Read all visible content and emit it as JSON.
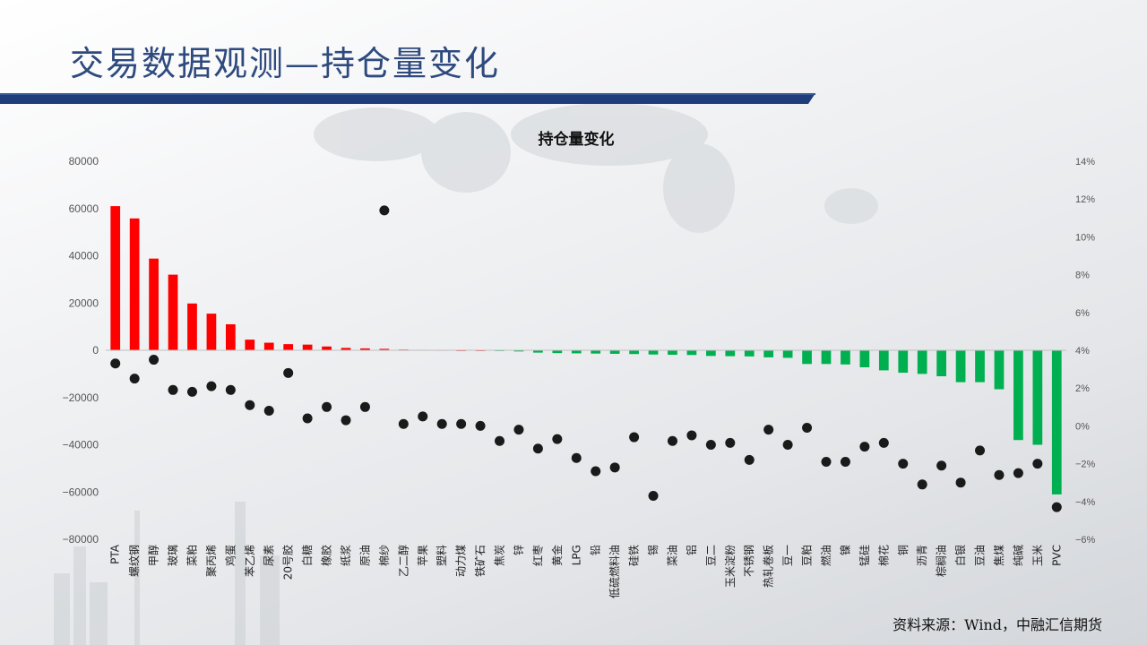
{
  "page": {
    "title": "交易数据观测—持仓量变化",
    "source": "资料来源：Wind，中融汇信期货"
  },
  "chart_data": {
    "type": "bar",
    "title": "持仓量变化",
    "xlabel": "",
    "ylabel": "",
    "categories": [
      "PTA",
      "螺纹钢",
      "甲醇",
      "玻璃",
      "菜粕",
      "聚丙烯",
      "鸡蛋",
      "苯乙烯",
      "尿素",
      "20号胶",
      "白糖",
      "橡胶",
      "纸浆",
      "原油",
      "棉纱",
      "乙二醇",
      "苹果",
      "塑料",
      "动力煤",
      "铁矿石",
      "焦炭",
      "锌",
      "红枣",
      "黄金",
      "LPG",
      "铅",
      "低硫燃料油",
      "硅铁",
      "锡",
      "菜油",
      "铝",
      "豆二",
      "玉米淀粉",
      "不锈钢",
      "热轧卷板",
      "豆一",
      "豆粕",
      "燃油",
      "镍",
      "锰硅",
      "棉花",
      "铜",
      "沥青",
      "棕榈油",
      "白银",
      "豆油",
      "焦煤",
      "纯碱",
      "玉米",
      "PVC"
    ],
    "series": [
      {
        "axis": "left",
        "render": "bar",
        "values": [
          61000,
          55800,
          38800,
          32000,
          19800,
          15500,
          11000,
          4500,
          3200,
          2600,
          2400,
          1600,
          1000,
          800,
          600,
          300,
          200,
          100,
          0,
          0,
          -300,
          -500,
          -1000,
          -1200,
          -1300,
          -1400,
          -1500,
          -1600,
          -1800,
          -1900,
          -2000,
          -2400,
          -2500,
          -2600,
          -3000,
          -3200,
          -5800,
          -5800,
          -6000,
          -7200,
          -8500,
          -9500,
          -10000,
          -11000,
          -13500,
          -13500,
          -16500,
          -38000,
          -40000,
          -61000
        ]
      },
      {
        "axis": "right",
        "render": "scatter",
        "values": [
          3.3,
          2.5,
          3.5,
          1.9,
          1.8,
          2.1,
          1.9,
          1.1,
          0.8,
          2.8,
          0.4,
          1.0,
          0.3,
          1.0,
          11.4,
          0.1,
          0.5,
          0.1,
          0.1,
          0.0,
          -0.8,
          -0.2,
          -1.2,
          -0.7,
          -1.7,
          -2.4,
          -2.2,
          -0.6,
          -3.7,
          -0.8,
          -0.5,
          -1.0,
          -0.9,
          -1.8,
          -0.2,
          -1.0,
          -0.1,
          -1.9,
          -1.9,
          -1.1,
          -0.9,
          -2.0,
          -3.1,
          -2.1,
          -3.0,
          -1.3,
          -2.6,
          -2.5,
          -2.0,
          -4.3
        ]
      }
    ],
    "left_axis": {
      "min": -80000,
      "max": 80000,
      "step": 20000,
      "ticks": [
        "80000",
        "60000",
        "40000",
        "20000",
        "0",
        "−20000",
        "−40000",
        "−60000",
        "−80000"
      ]
    },
    "right_axis": {
      "min": -6,
      "max": 14,
      "step": 2,
      "ticks": [
        "14%",
        "12%",
        "10%",
        "8%",
        "6%",
        "4%",
        "2%",
        "0%",
        "−2%",
        "−4%",
        "−6%"
      ]
    },
    "colors": {
      "positive": "#ff0000",
      "negative": "#00b050",
      "dot": "#1a1a1a",
      "title_bar": "#1f3d7a",
      "title_text": "#2e4a7e"
    },
    "grid": false,
    "legend": "none"
  }
}
